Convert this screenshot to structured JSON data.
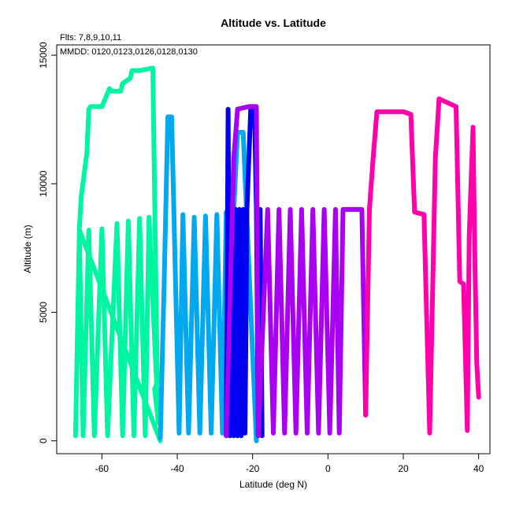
{
  "chart_data": {
    "type": "line",
    "title": "Altitude vs. Latitude",
    "xlabel": "Latitude (deg N)",
    "ylabel": "Altitude (m)",
    "annotations": [
      "Flts: 7,8,9,10,11",
      "MMDD: 0120,0123,0126,0128,0130"
    ],
    "xlim": [
      -72,
      43
    ],
    "ylim": [
      -500,
      15400
    ],
    "xticks": [
      -60,
      -40,
      -20,
      0,
      20,
      40
    ],
    "yticks": [
      0,
      5000,
      10000,
      15000
    ],
    "grid": false,
    "series": [
      {
        "color": "#00f5a0",
        "points": [
          [
            -67,
            200
          ],
          [
            -66,
            8100
          ],
          [
            -65,
            200
          ],
          [
            -63.5,
            8200
          ],
          [
            -62,
            200
          ],
          [
            -60,
            8250
          ],
          [
            -58.5,
            200
          ],
          [
            -56,
            8450
          ],
          [
            -54.5,
            200
          ],
          [
            -53,
            8550
          ],
          [
            -51.5,
            200
          ],
          [
            -50,
            8650
          ],
          [
            -48.5,
            200
          ],
          [
            -47.5,
            8700
          ],
          [
            -45,
            700
          ],
          [
            -46,
            2000
          ],
          [
            -45.3,
            2300
          ],
          [
            -46.5,
            14500
          ],
          [
            -50,
            14400
          ],
          [
            -52,
            14400
          ],
          [
            -52.5,
            14100
          ],
          [
            -54.5,
            13900
          ],
          [
            -55,
            13600
          ],
          [
            -57.5,
            13600
          ],
          [
            -58,
            13700
          ],
          [
            -60,
            13000
          ],
          [
            -63,
            13000
          ],
          [
            -63.5,
            12900
          ],
          [
            -64,
            11200
          ],
          [
            -65.5,
            9500
          ],
          [
            -66,
            8200
          ],
          [
            -44.5,
            0
          ]
        ]
      },
      {
        "color": "#00a8f0",
        "points": [
          [
            -44.5,
            100
          ],
          [
            -43.5,
            6000
          ],
          [
            -42.5,
            12600
          ],
          [
            -41.5,
            12600
          ],
          [
            -39.5,
            300
          ],
          [
            -38.5,
            8800
          ],
          [
            -37,
            300
          ],
          [
            -35.5,
            8700
          ],
          [
            -34,
            300
          ],
          [
            -32.5,
            8750
          ],
          [
            -31,
            300
          ],
          [
            -29.5,
            8800
          ],
          [
            -28,
            300
          ],
          [
            -27,
            8900
          ],
          [
            -26,
            300
          ],
          [
            -25,
            9000
          ],
          [
            -24,
            12000
          ],
          [
            -22.5,
            12000
          ],
          [
            -19,
            0
          ]
        ]
      },
      {
        "color": "#0000f0",
        "points": [
          [
            -27,
            200
          ],
          [
            -26.5,
            12900
          ],
          [
            -26,
            200
          ],
          [
            -25.5,
            9000
          ],
          [
            -25,
            200
          ],
          [
            -24.5,
            9000
          ],
          [
            -24,
            200
          ],
          [
            -23.5,
            9000
          ],
          [
            -23,
            200
          ],
          [
            -22.5,
            9000
          ],
          [
            -22,
            300
          ],
          [
            -21.5,
            9000
          ],
          [
            -20.5,
            12900
          ],
          [
            -19.5,
            12900
          ],
          [
            -19,
            9000
          ],
          [
            -18.5,
            200
          ],
          [
            -18,
            9000
          ],
          [
            -17.5,
            200
          ]
        ]
      },
      {
        "color": "#a800f0",
        "points": [
          [
            -27,
            200
          ],
          [
            -25,
            11000
          ],
          [
            -24,
            12900
          ],
          [
            -21,
            13000
          ],
          [
            -19,
            13000
          ],
          [
            -18.5,
            200
          ],
          [
            -16,
            9000
          ],
          [
            -14.5,
            300
          ],
          [
            -13,
            9000
          ],
          [
            -11.5,
            300
          ],
          [
            -10,
            9000
          ],
          [
            -8.5,
            300
          ],
          [
            -7,
            9000
          ],
          [
            -5.5,
            300
          ],
          [
            -4,
            9000
          ],
          [
            -2.5,
            300
          ],
          [
            -1,
            9000
          ],
          [
            0.5,
            300
          ],
          [
            2,
            9000
          ],
          [
            3,
            300
          ],
          [
            4,
            9000
          ],
          [
            9,
            9000
          ],
          [
            10,
            1000
          ]
        ]
      },
      {
        "color": "#ff00aa",
        "points": [
          [
            10,
            1000
          ],
          [
            10.5,
            5000
          ],
          [
            11,
            9000
          ],
          [
            12,
            11000
          ],
          [
            13,
            12800
          ],
          [
            20,
            12800
          ],
          [
            22,
            12700
          ],
          [
            23,
            8900
          ],
          [
            25.5,
            8800
          ],
          [
            27,
            300
          ],
          [
            28.5,
            11000
          ],
          [
            29.5,
            13300
          ],
          [
            31,
            13200
          ],
          [
            34,
            13000
          ],
          [
            35,
            6200
          ],
          [
            36,
            6100
          ],
          [
            37,
            400
          ],
          [
            37.5,
            8000
          ],
          [
            38.5,
            12200
          ],
          [
            39,
            7000
          ],
          [
            39.5,
            3000
          ],
          [
            40,
            1700
          ]
        ]
      }
    ]
  }
}
